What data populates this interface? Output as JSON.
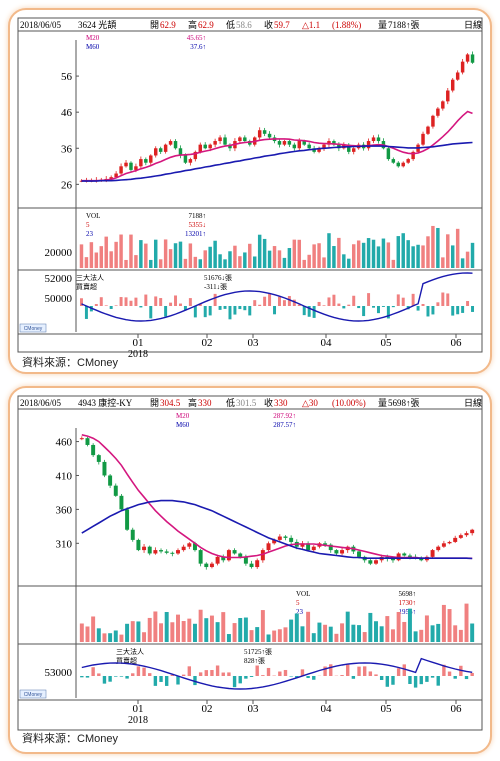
{
  "source_label": "資料來源：CMoney",
  "chart_data": [
    {
      "type": "candlestick",
      "header": {
        "date": "2018/06/05",
        "stock": "3624 光頡",
        "open_label": "開",
        "open": "62.9",
        "high_label": "高",
        "high": "62.9",
        "low_label": "低",
        "low": "58.6",
        "close_label": "收",
        "close": "59.7",
        "change": "△1.1",
        "change_pct": "(1.88%)",
        "volume_label": "量",
        "volume": "7188↑張",
        "period": "日線"
      },
      "ma_legend": [
        {
          "name": "M20",
          "value": "45.65↑",
          "color": "#cc0077"
        },
        {
          "name": "M60",
          "value": "37.6↑",
          "color": "#0000aa"
        }
      ],
      "price_ticks": [
        "56",
        "46",
        "36",
        "26"
      ],
      "price_range": [
        20,
        66
      ],
      "vol_legend": {
        "label": "VOL",
        "value": "7188↑",
        "rows": [
          {
            "name": "5",
            "value": "5355↓",
            "color": "#cc0000"
          },
          {
            "name": "23",
            "value": "13201↑",
            "color": "#0000aa"
          }
        ]
      },
      "vol_ticks": [
        "20000"
      ],
      "inst_legend": {
        "label": "三大法人",
        "label2": "買賣超",
        "value": "51676↓張",
        "value2": "-311↓張"
      },
      "inst_ticks": [
        "52000",
        "50000"
      ],
      "x_labels": [
        "01",
        "02",
        "03",
        "04",
        "05",
        "06"
      ],
      "x_year": "2018",
      "logo": "CMoney",
      "close_path": [
        27,
        27,
        27,
        27.2,
        27.3,
        27.5,
        28,
        29,
        31,
        32,
        30,
        31,
        33,
        32,
        34,
        36,
        35,
        37,
        38,
        36,
        34,
        32,
        33,
        35,
        37,
        36,
        37,
        38,
        39,
        37,
        36,
        38,
        39,
        38,
        37,
        39,
        41,
        40,
        39,
        38,
        37,
        38,
        37,
        36,
        38,
        37,
        36,
        35,
        36,
        37,
        38,
        37,
        36,
        37,
        35,
        36,
        37,
        36,
        38,
        39,
        38,
        36,
        33,
        32,
        31,
        32,
        33,
        35,
        37,
        40,
        42,
        45,
        47,
        49,
        52,
        55,
        57,
        60,
        62,
        59.7
      ],
      "m20_path": [
        27,
        27,
        27,
        27,
        27.1,
        27.2,
        27.4,
        27.8,
        28.4,
        29,
        29.4,
        29.8,
        30.3,
        30.7,
        31.2,
        31.8,
        32.3,
        32.9,
        33.5,
        33.9,
        34.1,
        34.2,
        34.3,
        34.5,
        34.9,
        35.2,
        35.5,
        35.9,
        36.3,
        36.6,
        36.8,
        37.1,
        37.4,
        37.6,
        37.7,
        37.9,
        38.2,
        38.4,
        38.5,
        38.6,
        38.6,
        38.6,
        38.5,
        38.3,
        38.2,
        38.1,
        37.9,
        37.6,
        37.4,
        37.3,
        37.3,
        37.2,
        37.1,
        37.0,
        36.8,
        36.7,
        36.6,
        36.6,
        36.7,
        36.9,
        37.0,
        36.9,
        36.5,
        36.0,
        35.4,
        34.9,
        34.6,
        34.5,
        34.7,
        35.2,
        35.9,
        36.9,
        38.0,
        39.2,
        40.5,
        42.0,
        43.6,
        45.0,
        46.2,
        45.65
      ],
      "m60_path": [
        26.9,
        26.9,
        26.9,
        26.9,
        27,
        27,
        27,
        27.1,
        27.2,
        27.3,
        27.4,
        27.6,
        27.7,
        27.9,
        28.1,
        28.3,
        28.5,
        28.8,
        29.0,
        29.3,
        29.5,
        29.8,
        30.0,
        30.3,
        30.5,
        30.8,
        31.0,
        31.3,
        31.5,
        31.8,
        32.0,
        32.3,
        32.5,
        32.8,
        33.0,
        33.3,
        33.5,
        33.8,
        34.0,
        34.2,
        34.5,
        34.7,
        34.9,
        35.1,
        35.3,
        35.4,
        35.6,
        35.7,
        35.9,
        36.0,
        36.1,
        36.2,
        36.3,
        36.4,
        36.4,
        36.5,
        36.5,
        36.6,
        36.6,
        36.6,
        36.6,
        36.6,
        36.5,
        36.4,
        36.3,
        36.2,
        36.1,
        36.1,
        36.1,
        36.2,
        36.3,
        36.4,
        36.6,
        36.8,
        37.0,
        37.2,
        37.3,
        37.4,
        37.5,
        37.6
      ]
    },
    {
      "type": "candlestick",
      "header": {
        "date": "2018/06/05",
        "stock": "4943 康控-KY",
        "open_label": "開",
        "open": "304.5",
        "high_label": "高",
        "high": "330",
        "low_label": "低",
        "low": "301.5",
        "close_label": "收",
        "close": "330",
        "change": "△30",
        "change_pct": "(10.00%)",
        "volume_label": "量",
        "volume": "5698↑張",
        "period": "日線"
      },
      "ma_legend": [
        {
          "name": "M20",
          "value": "287.92↑",
          "color": "#cc0077"
        },
        {
          "name": "M60",
          "value": "287.57↑",
          "color": "#0000aa"
        }
      ],
      "price_ticks": [
        "460",
        "410",
        "360",
        "310"
      ],
      "price_range": [
        250,
        480
      ],
      "vol_legend": {
        "label": "VOL",
        "value": "5698↑",
        "rows": [
          {
            "name": "5",
            "value": "1730↑",
            "color": "#cc0000"
          },
          {
            "name": "23",
            "value": "1956↑",
            "color": "#0000aa"
          }
        ]
      },
      "vol_ticks": [],
      "inst_legend": {
        "label": "三大法人",
        "label2": "買賣超",
        "value": "51725↑張",
        "value2": "828↑張"
      },
      "inst_ticks": [
        "53000"
      ],
      "x_labels": [
        "01",
        "02",
        "03",
        "04",
        "05",
        "06"
      ],
      "x_year": "2018",
      "logo": "CMoney",
      "close_path": [
        465,
        455,
        440,
        430,
        410,
        395,
        380,
        360,
        330,
        315,
        300,
        305,
        295,
        300,
        298,
        296,
        295,
        300,
        305,
        310,
        300,
        280,
        275,
        280,
        290,
        285,
        300,
        295,
        290,
        280,
        275,
        285,
        300,
        310,
        315,
        320,
        318,
        312,
        305,
        310,
        300,
        305,
        310,
        308,
        300,
        295,
        300,
        305,
        298,
        290,
        285,
        280,
        285,
        290,
        287,
        285,
        295,
        292,
        290,
        288,
        285,
        290,
        300,
        305,
        310,
        312,
        318,
        322,
        325,
        330
      ],
      "m20_path": [
        470,
        468,
        465,
        460,
        452,
        444,
        435,
        425,
        412,
        400,
        388,
        378,
        368,
        358,
        350,
        342,
        335,
        328,
        322,
        316,
        310,
        304,
        299,
        295,
        292,
        290,
        289,
        289,
        289,
        290,
        291,
        292,
        294,
        297,
        300,
        303,
        306,
        308,
        309,
        309,
        309,
        309,
        308,
        307,
        306,
        305,
        304,
        303,
        302,
        300,
        298,
        296,
        294,
        292,
        291,
        290,
        289,
        289,
        289,
        289,
        288,
        288,
        288,
        288,
        288,
        288,
        288,
        288,
        288,
        287.92
      ],
      "m60_path": [
        325,
        330,
        335,
        340,
        345,
        350,
        354,
        358,
        361,
        364,
        367,
        369,
        371,
        372,
        373,
        373,
        373,
        372,
        371,
        369,
        367,
        364,
        361,
        358,
        354,
        350,
        346,
        342,
        338,
        334,
        330,
        326,
        322,
        318,
        315,
        312,
        309,
        306,
        303,
        301,
        299,
        297,
        295,
        294,
        293,
        292,
        291,
        290,
        289,
        289,
        288,
        288,
        288,
        288,
        288,
        288,
        288,
        288,
        288,
        288,
        288,
        288,
        288,
        288,
        288,
        288,
        288,
        288,
        288,
        287.57
      ]
    }
  ]
}
